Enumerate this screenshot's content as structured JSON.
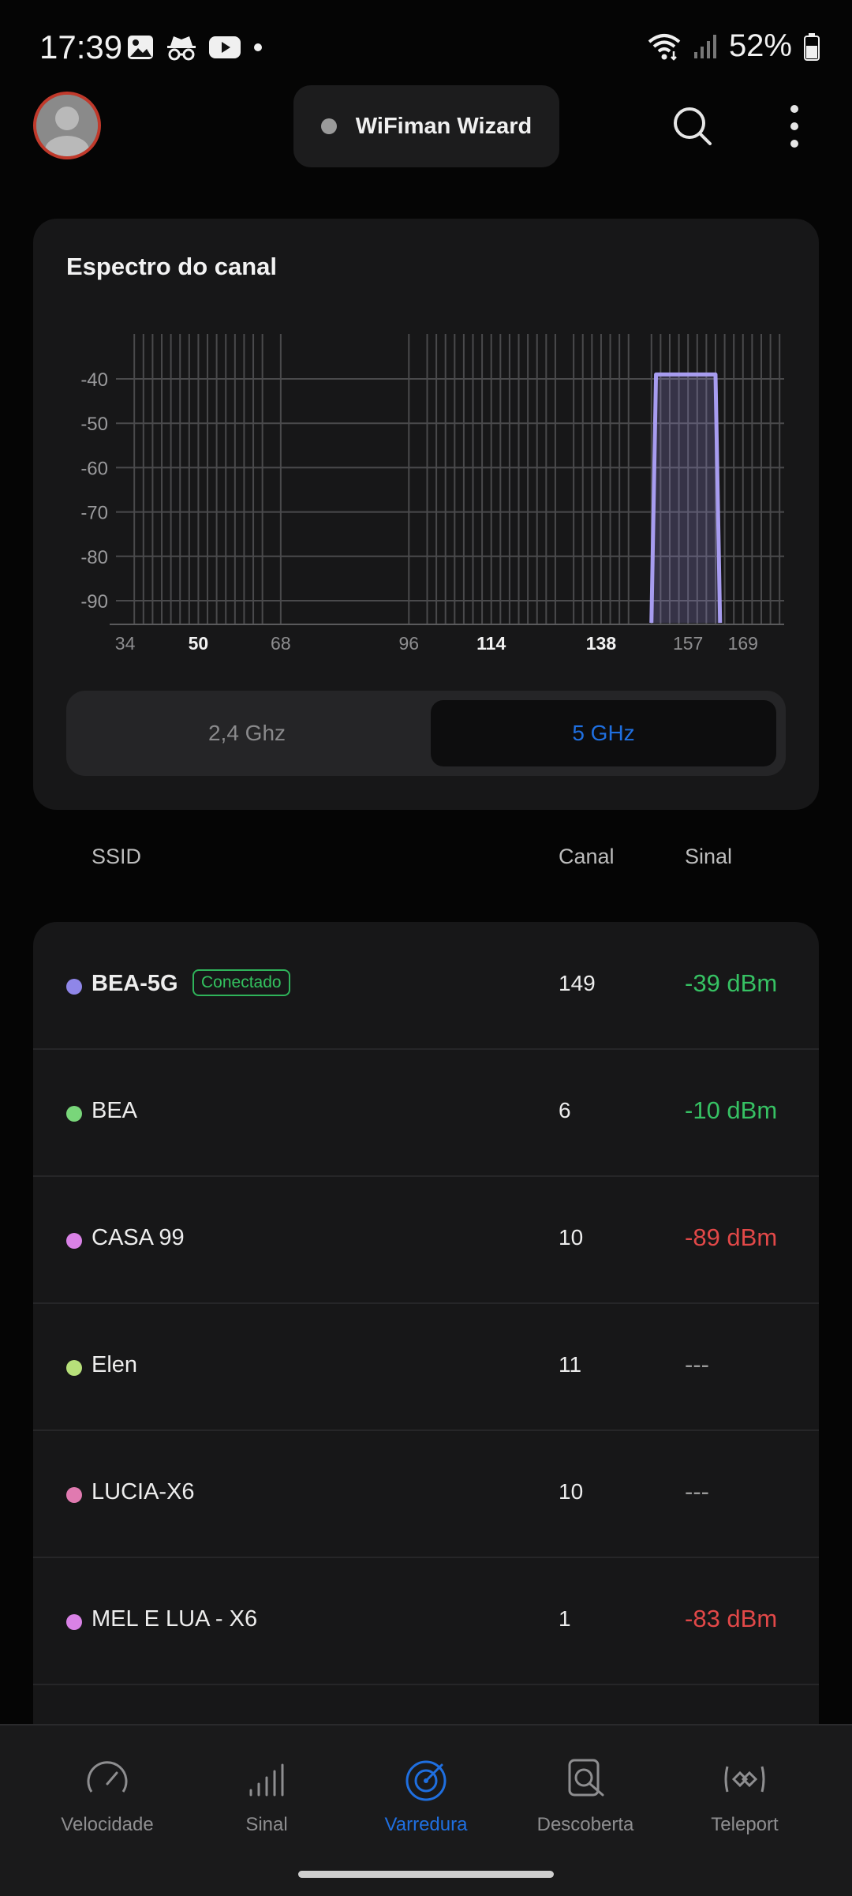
{
  "status_bar": {
    "time": "17:39",
    "battery": "52%",
    "icons": [
      "image-icon",
      "incognito-icon",
      "youtube-icon",
      "dot-icon"
    ],
    "right_icons": [
      "wifi-icon",
      "cellular-signal-icon",
      "battery-icon"
    ]
  },
  "header": {
    "wizard_label": "WiFiman Wizard",
    "icons": [
      "avatar",
      "search-icon",
      "more-vert-icon"
    ]
  },
  "spectrum_card": {
    "title": "Espectro do canal",
    "band_options": [
      "2,4 Ghz",
      "5 GHz"
    ],
    "selected_band": "5 GHz"
  },
  "chart_data": {
    "type": "area",
    "title": "Espectro do canal",
    "xlabel": "",
    "ylabel": "",
    "x_ticks": [
      34,
      50,
      68,
      96,
      114,
      138,
      157,
      169
    ],
    "x_ticks_bold": [
      50,
      114,
      138
    ],
    "y_ticks": [
      -40,
      -50,
      -60,
      -70,
      -80,
      -90
    ],
    "xlim": [
      32,
      178
    ],
    "ylim": [
      -95,
      -30
    ],
    "channel_lines": [
      36,
      38,
      40,
      42,
      44,
      46,
      48,
      50,
      52,
      54,
      56,
      58,
      60,
      62,
      64,
      68,
      96,
      100,
      102,
      104,
      106,
      108,
      110,
      112,
      114,
      116,
      118,
      120,
      122,
      124,
      126,
      128,
      132,
      134,
      136,
      138,
      140,
      142,
      144,
      149,
      151,
      153,
      155,
      157,
      159,
      161,
      163,
      165,
      167,
      169,
      171,
      173,
      175,
      177
    ],
    "series": [
      {
        "name": "BEA-5G",
        "color": "#a79cf0",
        "points": [
          [
            149,
            -95
          ],
          [
            150,
            -39
          ],
          [
            163,
            -39
          ],
          [
            164,
            -95
          ]
        ]
      }
    ]
  },
  "list_header": {
    "ssid": "SSID",
    "canal": "Canal",
    "sinal": "Sinal"
  },
  "networks": [
    {
      "ssid": "BEA-5G",
      "badge": "Conectado",
      "channel": "149",
      "signal": "-39 dBm",
      "dot_color": "#8f86e8",
      "signal_color": "#36c163",
      "bold": true
    },
    {
      "ssid": "BEA",
      "badge": "",
      "channel": "6",
      "signal": "-10 dBm",
      "dot_color": "#79d67a",
      "signal_color": "#36c163",
      "bold": false
    },
    {
      "ssid": "CASA 99",
      "badge": "",
      "channel": "10",
      "signal": "-89 dBm",
      "dot_color": "#d982e6",
      "signal_color": "#e24848",
      "bold": false
    },
    {
      "ssid": "Elen",
      "badge": "",
      "channel": "11",
      "signal": "---",
      "dot_color": "#b7e07a",
      "signal_color": "#9a9a9a",
      "bold": false
    },
    {
      "ssid": "LUCIA-X6",
      "badge": "",
      "channel": "10",
      "signal": "---",
      "dot_color": "#e07ab0",
      "signal_color": "#9a9a9a",
      "bold": false
    },
    {
      "ssid": "MEL E LUA - X6",
      "badge": "",
      "channel": "1",
      "signal": "-83 dBm",
      "dot_color": "#d982e6",
      "signal_color": "#e24848",
      "bold": false
    }
  ],
  "bottom_nav": [
    {
      "label": "Velocidade",
      "icon": "speedometer-icon",
      "active": false
    },
    {
      "label": "Sinal",
      "icon": "signal-bars-icon",
      "active": false
    },
    {
      "label": "Varredura",
      "icon": "radar-scan-icon",
      "active": true
    },
    {
      "label": "Descoberta",
      "icon": "device-search-icon",
      "active": false
    },
    {
      "label": "Teleport",
      "icon": "teleport-icon",
      "active": false
    }
  ],
  "colors": {
    "accent": "#1f6fe0",
    "good": "#36c163",
    "bad": "#e24848",
    "spectrum": "#a79cf0"
  }
}
